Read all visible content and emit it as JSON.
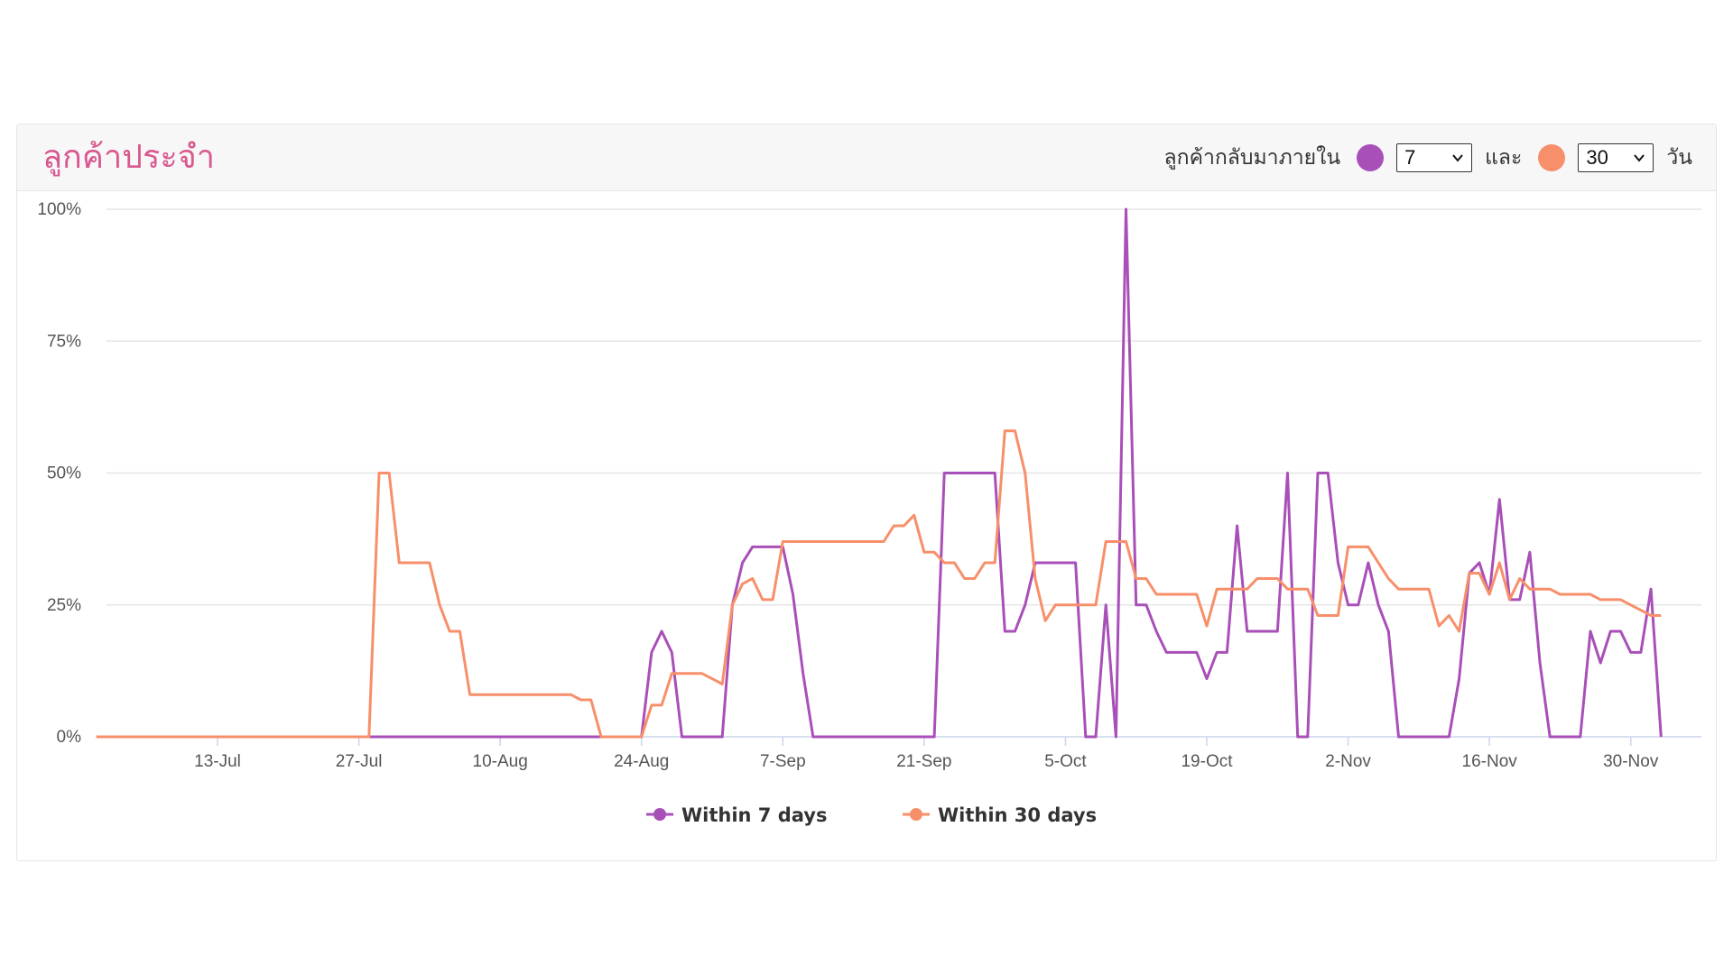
{
  "panel": {
    "title": "ลูกค้าประจำ",
    "returning_label": "ลูกค้ากลับมาภายใน",
    "and_label": "และ",
    "days_label": "วัน",
    "select_short": {
      "value": "7"
    },
    "select_long": {
      "value": "30"
    }
  },
  "colors": {
    "series_7": "#a94fb8",
    "series_30": "#f78f6a",
    "title": "#d8588f"
  },
  "chart_data": {
    "type": "line",
    "title": "",
    "xlabel": "",
    "ylabel": "",
    "x_range": [
      "2020-07-02",
      "2020-12-07"
    ],
    "ylim": [
      0,
      100
    ],
    "y_ticks": [
      {
        "value": 0,
        "label": "0%"
      },
      {
        "value": 25,
        "label": "25%"
      },
      {
        "value": 50,
        "label": "50%"
      },
      {
        "value": 75,
        "label": "75%"
      },
      {
        "value": 100,
        "label": "100%"
      }
    ],
    "x_ticks": [
      {
        "date": "2020-07-13",
        "label": "13-Jul"
      },
      {
        "date": "2020-07-27",
        "label": "27-Jul"
      },
      {
        "date": "2020-08-10",
        "label": "10-Aug"
      },
      {
        "date": "2020-08-24",
        "label": "24-Aug"
      },
      {
        "date": "2020-09-07",
        "label": "7-Sep"
      },
      {
        "date": "2020-09-21",
        "label": "21-Sep"
      },
      {
        "date": "2020-10-05",
        "label": "5-Oct"
      },
      {
        "date": "2020-10-19",
        "label": "19-Oct"
      },
      {
        "date": "2020-11-02",
        "label": "2-Nov"
      },
      {
        "date": "2020-11-16",
        "label": "16-Nov"
      },
      {
        "date": "2020-11-30",
        "label": "30-Nov"
      }
    ],
    "grid": true,
    "legend": "bottom",
    "series": [
      {
        "name": "Within 7 days",
        "color": "#a94fb8",
        "points": [
          [
            "2020-07-01",
            0
          ],
          [
            "2020-08-23",
            0
          ],
          [
            "2020-08-24",
            0
          ],
          [
            "2020-08-25",
            16
          ],
          [
            "2020-08-26",
            20
          ],
          [
            "2020-08-27",
            16
          ],
          [
            "2020-08-28",
            0
          ],
          [
            "2020-09-01",
            0
          ],
          [
            "2020-09-02",
            25
          ],
          [
            "2020-09-03",
            33
          ],
          [
            "2020-09-04",
            36
          ],
          [
            "2020-09-07",
            36
          ],
          [
            "2020-09-08",
            27
          ],
          [
            "2020-09-09",
            12
          ],
          [
            "2020-09-10",
            0
          ],
          [
            "2020-09-22",
            0
          ],
          [
            "2020-09-23",
            50
          ],
          [
            "2020-09-28",
            50
          ],
          [
            "2020-09-29",
            20
          ],
          [
            "2020-09-30",
            20
          ],
          [
            "2020-10-01",
            25
          ],
          [
            "2020-10-02",
            33
          ],
          [
            "2020-10-06",
            33
          ],
          [
            "2020-10-07",
            0
          ],
          [
            "2020-10-08",
            0
          ],
          [
            "2020-10-09",
            25
          ],
          [
            "2020-10-10",
            0
          ],
          [
            "2020-10-11",
            100
          ],
          [
            "2020-10-12",
            25
          ],
          [
            "2020-10-13",
            25
          ],
          [
            "2020-10-14",
            20
          ],
          [
            "2020-10-15",
            16
          ],
          [
            "2020-10-18",
            16
          ],
          [
            "2020-10-19",
            11
          ],
          [
            "2020-10-20",
            16
          ],
          [
            "2020-10-21",
            16
          ],
          [
            "2020-10-22",
            40
          ],
          [
            "2020-10-23",
            20
          ],
          [
            "2020-10-26",
            20
          ],
          [
            "2020-10-27",
            50
          ],
          [
            "2020-10-28",
            0
          ],
          [
            "2020-10-29",
            0
          ],
          [
            "2020-10-30",
            50
          ],
          [
            "2020-10-31",
            50
          ],
          [
            "2020-11-01",
            33
          ],
          [
            "2020-11-02",
            25
          ],
          [
            "2020-11-03",
            25
          ],
          [
            "2020-11-04",
            33
          ],
          [
            "2020-11-05",
            25
          ],
          [
            "2020-11-06",
            20
          ],
          [
            "2020-11-07",
            0
          ],
          [
            "2020-11-12",
            0
          ],
          [
            "2020-11-13",
            11
          ],
          [
            "2020-11-14",
            31
          ],
          [
            "2020-11-15",
            33
          ],
          [
            "2020-11-16",
            27
          ],
          [
            "2020-11-17",
            45
          ],
          [
            "2020-11-18",
            26
          ],
          [
            "2020-11-19",
            26
          ],
          [
            "2020-11-20",
            35
          ],
          [
            "2020-11-21",
            14
          ],
          [
            "2020-11-22",
            0
          ],
          [
            "2020-11-25",
            0
          ],
          [
            "2020-11-26",
            20
          ],
          [
            "2020-11-27",
            14
          ],
          [
            "2020-11-28",
            20
          ],
          [
            "2020-11-29",
            20
          ],
          [
            "2020-11-30",
            16
          ],
          [
            "2020-12-01",
            16
          ],
          [
            "2020-12-02",
            28
          ],
          [
            "2020-12-03",
            0
          ]
        ]
      },
      {
        "name": "Within 30 days",
        "color": "#f78f6a",
        "points": [
          [
            "2020-07-01",
            0
          ],
          [
            "2020-07-28",
            0
          ],
          [
            "2020-07-29",
            50
          ],
          [
            "2020-07-30",
            50
          ],
          [
            "2020-07-31",
            33
          ],
          [
            "2020-08-03",
            33
          ],
          [
            "2020-08-04",
            25
          ],
          [
            "2020-08-05",
            20
          ],
          [
            "2020-08-06",
            20
          ],
          [
            "2020-08-07",
            8
          ],
          [
            "2020-08-17",
            8
          ],
          [
            "2020-08-18",
            7
          ],
          [
            "2020-08-19",
            7
          ],
          [
            "2020-08-20",
            0
          ],
          [
            "2020-08-24",
            0
          ],
          [
            "2020-08-25",
            6
          ],
          [
            "2020-08-26",
            6
          ],
          [
            "2020-08-27",
            12
          ],
          [
            "2020-08-30",
            12
          ],
          [
            "2020-08-31",
            11
          ],
          [
            "2020-09-01",
            10
          ],
          [
            "2020-09-02",
            25
          ],
          [
            "2020-09-03",
            29
          ],
          [
            "2020-09-04",
            30
          ],
          [
            "2020-09-05",
            26
          ],
          [
            "2020-09-06",
            26
          ],
          [
            "2020-09-07",
            37
          ],
          [
            "2020-09-17",
            37
          ],
          [
            "2020-09-18",
            40
          ],
          [
            "2020-09-19",
            40
          ],
          [
            "2020-09-20",
            42
          ],
          [
            "2020-09-21",
            35
          ],
          [
            "2020-09-22",
            35
          ],
          [
            "2020-09-23",
            33
          ],
          [
            "2020-09-24",
            33
          ],
          [
            "2020-09-25",
            30
          ],
          [
            "2020-09-26",
            30
          ],
          [
            "2020-09-27",
            33
          ],
          [
            "2020-09-28",
            33
          ],
          [
            "2020-09-29",
            58
          ],
          [
            "2020-09-30",
            58
          ],
          [
            "2020-10-01",
            50
          ],
          [
            "2020-10-02",
            30
          ],
          [
            "2020-10-03",
            22
          ],
          [
            "2020-10-04",
            25
          ],
          [
            "2020-10-08",
            25
          ],
          [
            "2020-10-09",
            37
          ],
          [
            "2020-10-11",
            37
          ],
          [
            "2020-10-12",
            30
          ],
          [
            "2020-10-13",
            30
          ],
          [
            "2020-10-14",
            27
          ],
          [
            "2020-10-18",
            27
          ],
          [
            "2020-10-19",
            21
          ],
          [
            "2020-10-20",
            28
          ],
          [
            "2020-10-22",
            28
          ],
          [
            "2020-10-23",
            28
          ],
          [
            "2020-10-24",
            30
          ],
          [
            "2020-10-26",
            30
          ],
          [
            "2020-10-27",
            28
          ],
          [
            "2020-10-28",
            28
          ],
          [
            "2020-10-29",
            28
          ],
          [
            "2020-10-30",
            23
          ],
          [
            "2020-11-01",
            23
          ],
          [
            "2020-11-02",
            36
          ],
          [
            "2020-11-04",
            36
          ],
          [
            "2020-11-05",
            33
          ],
          [
            "2020-11-06",
            30
          ],
          [
            "2020-11-07",
            28
          ],
          [
            "2020-11-10",
            28
          ],
          [
            "2020-11-11",
            21
          ],
          [
            "2020-11-12",
            23
          ],
          [
            "2020-11-13",
            20
          ],
          [
            "2020-11-14",
            31
          ],
          [
            "2020-11-15",
            31
          ],
          [
            "2020-11-16",
            27
          ],
          [
            "2020-11-17",
            33
          ],
          [
            "2020-11-18",
            26
          ],
          [
            "2020-11-19",
            30
          ],
          [
            "2020-11-20",
            28
          ],
          [
            "2020-11-22",
            28
          ],
          [
            "2020-11-23",
            27
          ],
          [
            "2020-11-26",
            27
          ],
          [
            "2020-11-27",
            26
          ],
          [
            "2020-11-29",
            26
          ],
          [
            "2020-11-30",
            25
          ],
          [
            "2020-12-01",
            24
          ],
          [
            "2020-12-02",
            23
          ],
          [
            "2020-12-03",
            23
          ]
        ]
      }
    ]
  }
}
